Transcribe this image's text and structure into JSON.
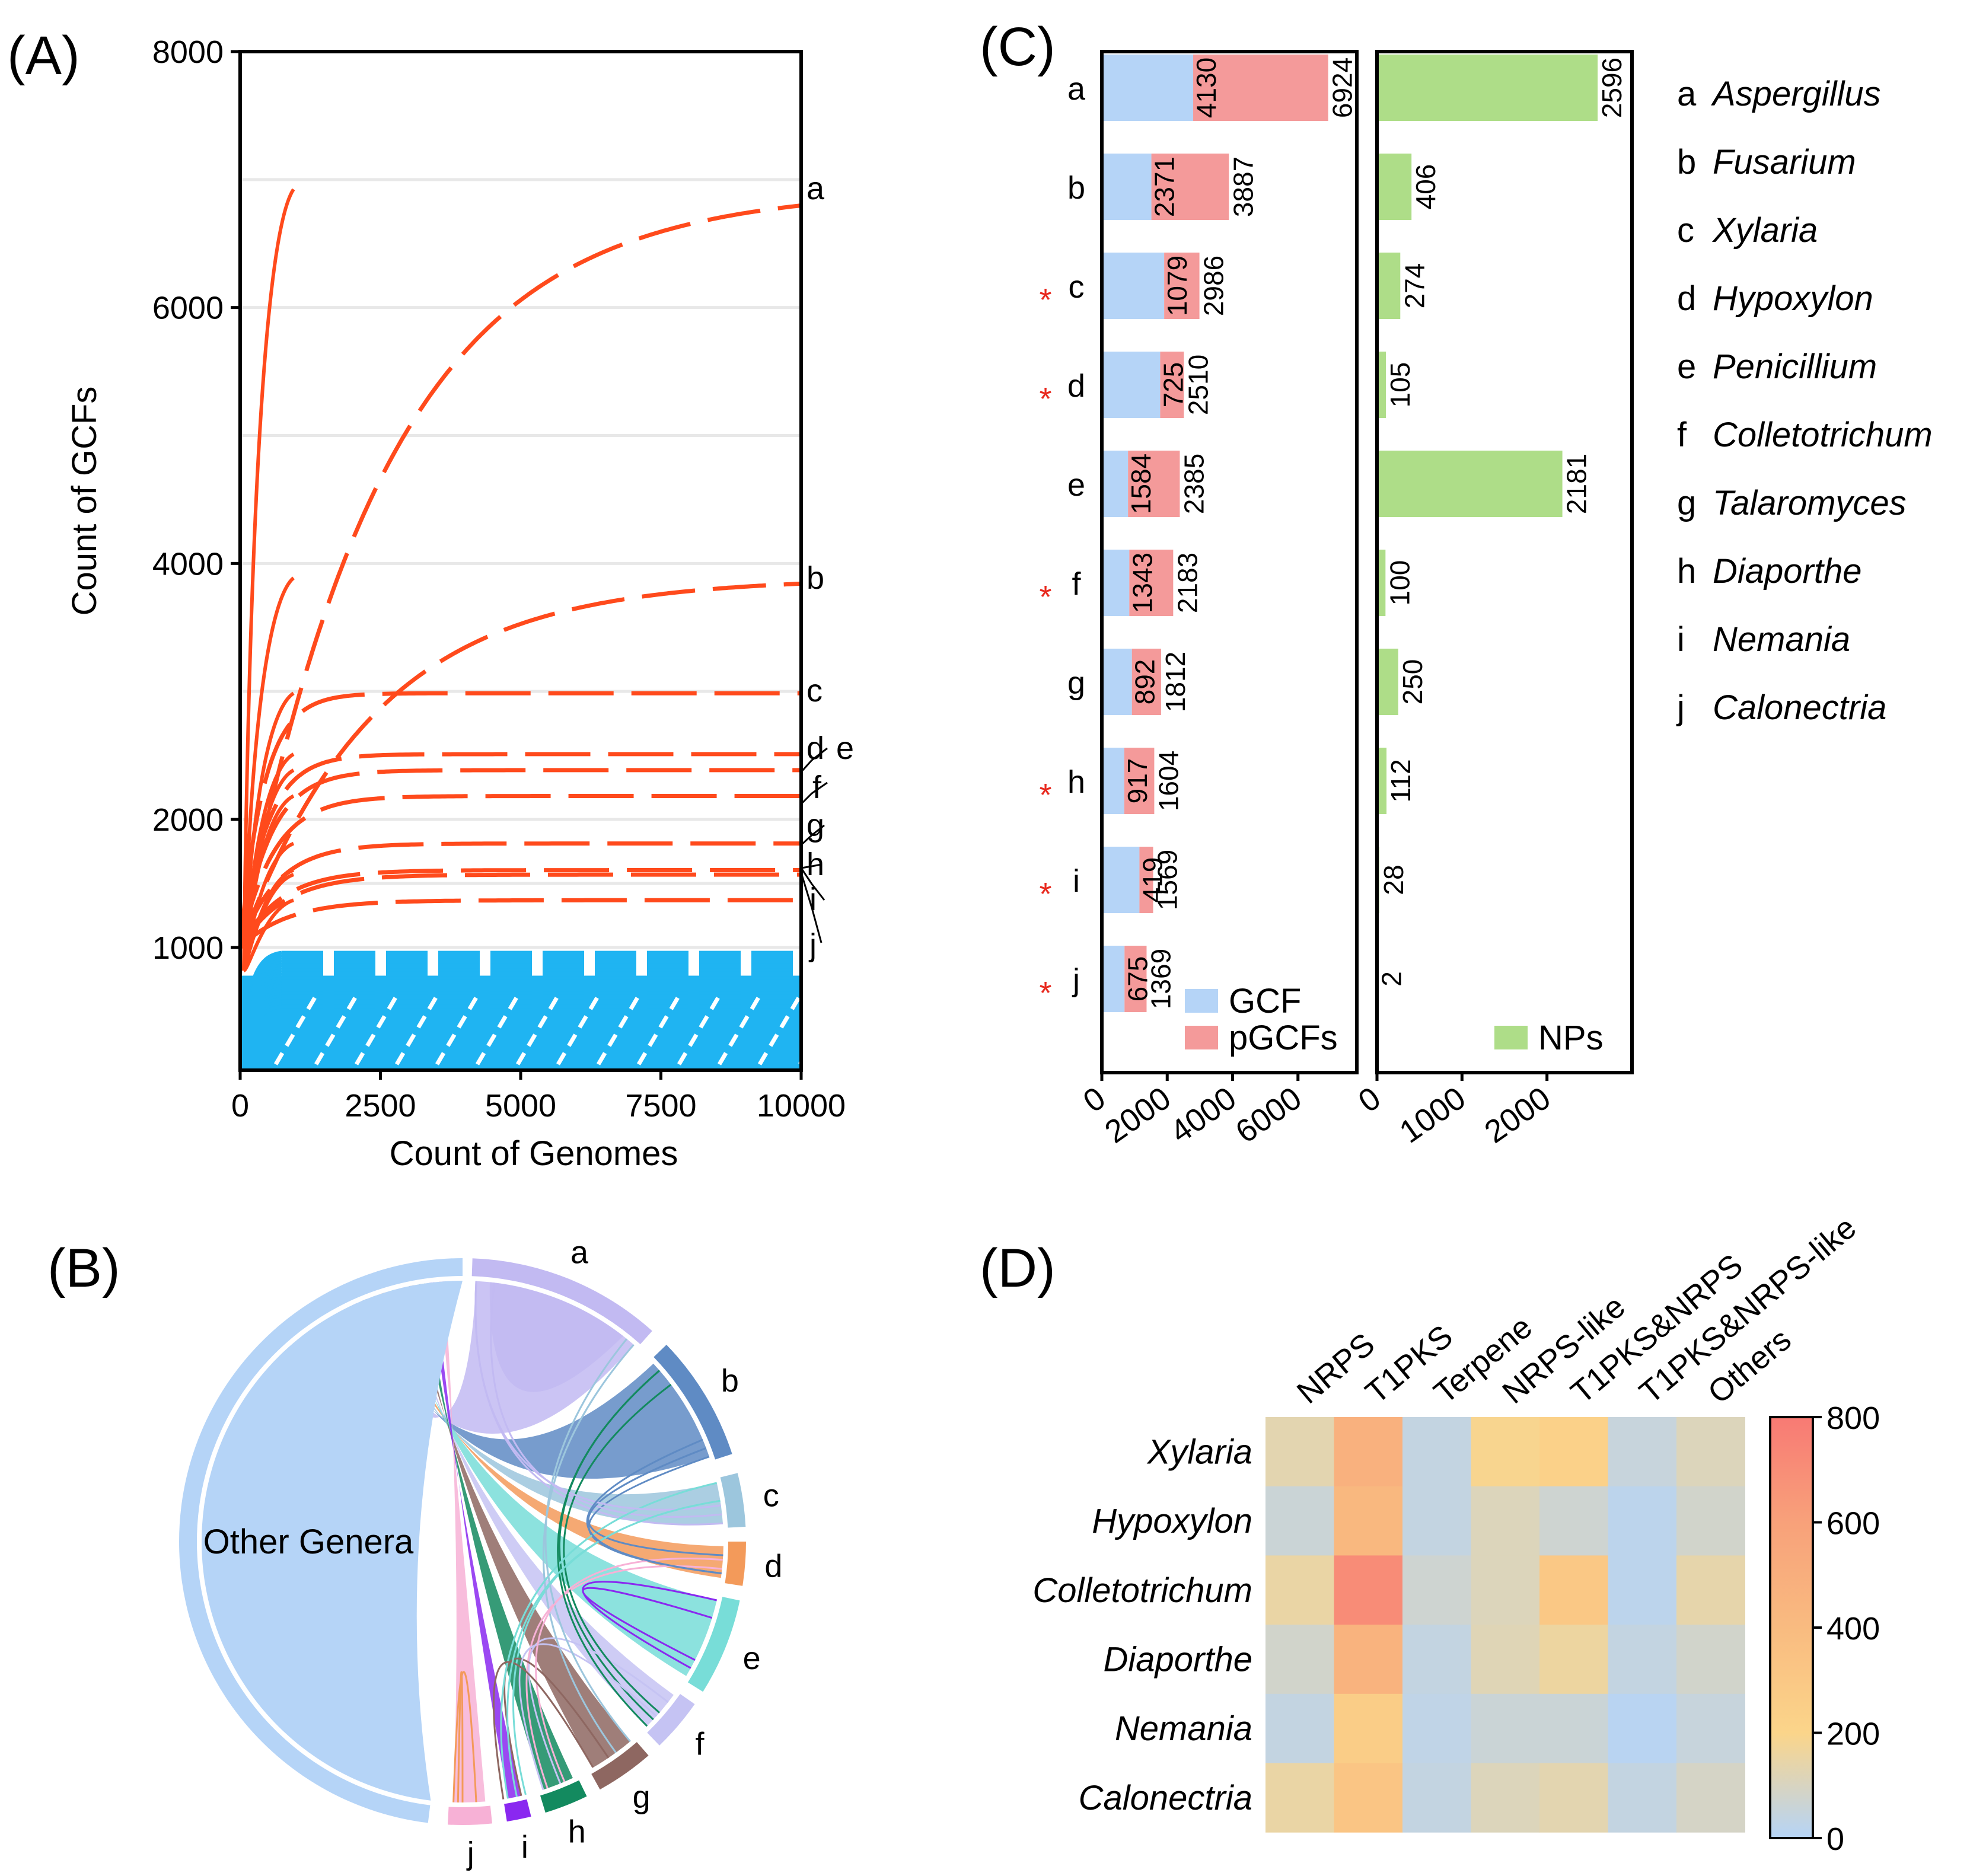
{
  "panels": {
    "A": "(A)",
    "B": "(B)",
    "C": "(C)",
    "D": "(D)"
  },
  "colors": {
    "red_curve": "#ff4a1c",
    "blue_curve": "#1fb4f2",
    "gcf": "#b5d4f7",
    "pgcf": "#f49a9a",
    "nps": "#aedd88",
    "asterisk": "#e8291e"
  },
  "chart_data": [
    {
      "id": "A",
      "type": "line",
      "title": "",
      "xlabel": "Count of Genomes",
      "ylabel": "Count of GCFs",
      "xlim": [
        0,
        10000
      ],
      "ylim": [
        0,
        8000
      ],
      "xticks": [
        "0",
        "2500",
        "5000",
        "7500",
        "10000"
      ],
      "yticks": [
        "1000",
        "2000",
        "4000",
        "6000",
        "8000"
      ],
      "grid": true,
      "series": [
        {
          "name": "a",
          "final": 6924,
          "style": "dashed",
          "color": "red"
        },
        {
          "name": "b",
          "final": 3887,
          "style": "dashed",
          "color": "red"
        },
        {
          "name": "c",
          "final": 2986,
          "style": "dashed",
          "color": "red"
        },
        {
          "name": "d",
          "final": 2510,
          "style": "dashed",
          "color": "red"
        },
        {
          "name": "e",
          "final": 2385,
          "style": "dashed",
          "color": "red"
        },
        {
          "name": "f",
          "final": 2183,
          "style": "dashed",
          "color": "red"
        },
        {
          "name": "g",
          "final": 1812,
          "style": "dashed",
          "color": "red"
        },
        {
          "name": "h",
          "final": 1604,
          "style": "dashed",
          "color": "red"
        },
        {
          "name": "i",
          "final": 1569,
          "style": "dashed",
          "color": "red"
        },
        {
          "name": "j",
          "final": 1369,
          "style": "dashed",
          "color": "red"
        }
      ],
      "other_genera_max": 960
    },
    {
      "id": "B",
      "type": "chord",
      "segments": [
        {
          "name": "a",
          "color": "#c2baf2"
        },
        {
          "name": "b",
          "color": "#5f8bc4"
        },
        {
          "name": "c",
          "color": "#9cc6dd"
        },
        {
          "name": "d",
          "color": "#f39a5a"
        },
        {
          "name": "e",
          "color": "#78ddd8"
        },
        {
          "name": "f",
          "color": "#c5c3f3"
        },
        {
          "name": "g",
          "color": "#8e6761"
        },
        {
          "name": "h",
          "color": "#138a5f"
        },
        {
          "name": "i",
          "color": "#8a28f0"
        },
        {
          "name": "j",
          "color": "#f7b1d6"
        },
        {
          "name": "Other Genera",
          "color": "#b5d4f7"
        }
      ]
    },
    {
      "id": "C",
      "type": "bar",
      "orientation": "horizontal",
      "categories": [
        "a",
        "b",
        "c",
        "d",
        "e",
        "f",
        "g",
        "h",
        "i",
        "j"
      ],
      "significant": [
        false,
        false,
        true,
        true,
        false,
        true,
        false,
        true,
        true,
        true
      ],
      "series": [
        {
          "name": "GCF",
          "values": [
            6924,
            3887,
            2986,
            2510,
            2385,
            2183,
            1812,
            1604,
            1569,
            1369
          ]
        },
        {
          "name": "pGCFs",
          "values": [
            4130,
            2371,
            1079,
            725,
            1584,
            1343,
            892,
            917,
            419,
            675
          ]
        },
        {
          "name": "NPs",
          "values": [
            2596,
            406,
            274,
            105,
            2181,
            100,
            250,
            112,
            28,
            2
          ]
        }
      ],
      "xlim_left": [
        0,
        7800
      ],
      "xticks_left": [
        "0",
        "2000",
        "4000",
        "6000"
      ],
      "xlim_right": [
        0,
        3000
      ],
      "xticks_right": [
        "0",
        "1000",
        "2000"
      ],
      "genera": [
        {
          "key": "a",
          "name": "Aspergillus"
        },
        {
          "key": "b",
          "name": "Fusarium"
        },
        {
          "key": "c",
          "name": "Xylaria"
        },
        {
          "key": "d",
          "name": "Hypoxylon"
        },
        {
          "key": "e",
          "name": "Penicillium"
        },
        {
          "key": "f",
          "name": "Colletotrichum"
        },
        {
          "key": "g",
          "name": "Talaromyces"
        },
        {
          "key": "h",
          "name": "Diaporthe"
        },
        {
          "key": "i",
          "name": "Nemania"
        },
        {
          "key": "j",
          "name": "Calonectria"
        }
      ],
      "asterisk": "*"
    },
    {
      "id": "D",
      "type": "heatmap",
      "columns": [
        "NRPS",
        "T1PKS",
        "Terpene",
        "NRPS-like",
        "T1PKS&NRPS",
        "T1PKS&NRPS-like",
        "Others"
      ],
      "rows": [
        "Xylaria",
        "Hypoxylon",
        "Colletotrichum",
        "Diaporthe",
        "Nemania",
        "Calonectria"
      ],
      "values": [
        [
          130,
          480,
          40,
          190,
          230,
          50,
          110
        ],
        [
          60,
          420,
          40,
          110,
          70,
          20,
          80
        ],
        [
          150,
          710,
          70,
          110,
          300,
          20,
          140
        ],
        [
          80,
          460,
          40,
          120,
          160,
          40,
          80
        ],
        [
          40,
          260,
          30,
          60,
          60,
          10,
          50
        ],
        [
          150,
          320,
          40,
          110,
          130,
          40,
          90
        ]
      ],
      "colorbar": {
        "min": 0,
        "max": 800,
        "ticks": [
          "0",
          "200",
          "400",
          "600",
          "800"
        ]
      }
    }
  ]
}
